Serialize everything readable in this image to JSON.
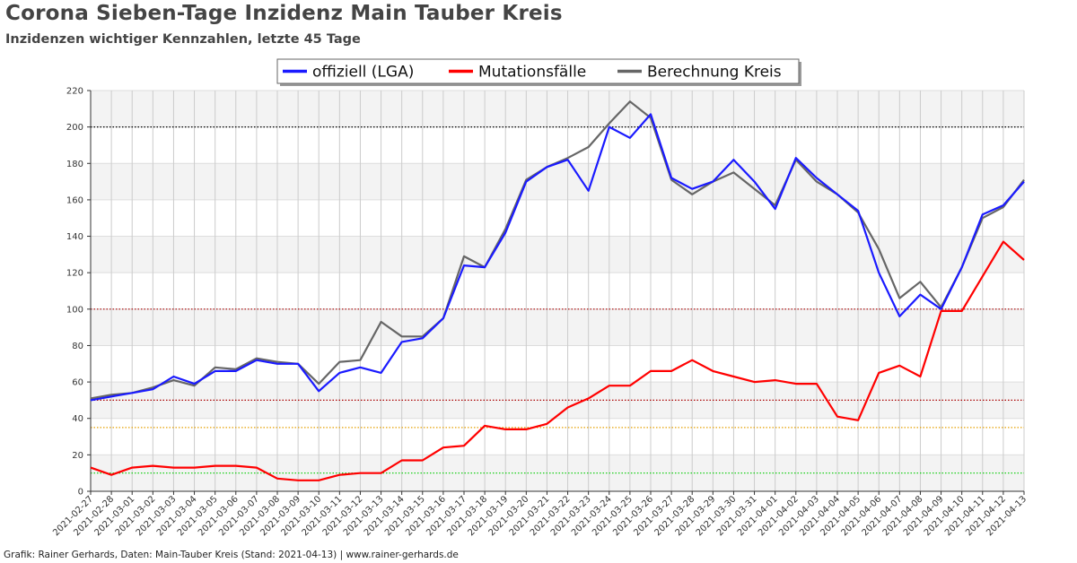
{
  "title": "Corona Sieben-Tage Inzidenz Main Tauber Kreis",
  "subtitle": "Inzidenzen wichtiger Kennzahlen, letzte 45 Tage",
  "footer": "Grafik: Rainer Gerhards, Daten: Main-Tauber Kreis (Stand: 2021-04-13) | www.rainer-gerhards.de",
  "chart_data": {
    "type": "line",
    "x": [
      "2021-02-27",
      "2021-02-28",
      "2021-03-01",
      "2021-03-02",
      "2021-03-03",
      "2021-03-04",
      "2021-03-05",
      "2021-03-06",
      "2021-03-07",
      "2021-03-08",
      "2021-03-09",
      "2021-03-10",
      "2021-03-11",
      "2021-03-12",
      "2021-03-13",
      "2021-03-14",
      "2021-03-15",
      "2021-03-16",
      "2021-03-17",
      "2021-03-18",
      "2021-03-19",
      "2021-03-20",
      "2021-03-21",
      "2021-03-22",
      "2021-03-23",
      "2021-03-24",
      "2021-03-25",
      "2021-03-26",
      "2021-03-27",
      "2021-03-28",
      "2021-03-29",
      "2021-03-30",
      "2021-03-31",
      "2021-04-01",
      "2021-04-02",
      "2021-04-03",
      "2021-04-04",
      "2021-04-05",
      "2021-04-06",
      "2021-04-07",
      "2021-04-08",
      "2021-04-09",
      "2021-04-10",
      "2021-04-11",
      "2021-04-12",
      "2021-04-13"
    ],
    "series": [
      {
        "name": "offiziell (LGA)",
        "color": "#1a1aff",
        "values": [
          50,
          52,
          54,
          56,
          63,
          59,
          66,
          66,
          72,
          70,
          70,
          55,
          65,
          68,
          65,
          82,
          84,
          95,
          124,
          123,
          142,
          170,
          178,
          182,
          165,
          200,
          194,
          207,
          172,
          166,
          170,
          182,
          170,
          155,
          183,
          172,
          163,
          154,
          120,
          96,
          108,
          100,
          123,
          152,
          157,
          170
        ]
      },
      {
        "name": "Mutationsfälle",
        "color": "#ff0000",
        "values": [
          13,
          9,
          13,
          14,
          13,
          13,
          14,
          14,
          13,
          7,
          6,
          6,
          9,
          10,
          10,
          17,
          17,
          24,
          25,
          36,
          34,
          34,
          37,
          46,
          51,
          58,
          58,
          66,
          66,
          72,
          66,
          63,
          60,
          61,
          59,
          59,
          41,
          39,
          65,
          69,
          63,
          99,
          99,
          118,
          137,
          127
        ]
      },
      {
        "name": "Berechnung Kreis",
        "color": "#666666",
        "values": [
          51,
          53,
          54,
          57,
          61,
          58,
          68,
          67,
          73,
          71,
          70,
          59,
          71,
          72,
          93,
          85,
          85,
          95,
          129,
          123,
          144,
          171,
          178,
          183,
          189,
          202,
          214,
          205,
          171,
          163,
          170,
          175,
          166,
          157,
          182,
          170,
          163,
          153,
          133,
          106,
          115,
          101,
          123,
          150,
          156,
          171
        ]
      }
    ],
    "ylim": [
      0,
      220
    ],
    "yticks": [
      0,
      20,
      40,
      60,
      80,
      100,
      120,
      140,
      160,
      180,
      200,
      220
    ],
    "reference_lines": [
      {
        "value": 200,
        "color": "#000000"
      },
      {
        "value": 100,
        "color": "#aa0000"
      },
      {
        "value": 50,
        "color": "#aa0000"
      },
      {
        "value": 35,
        "color": "#e6a000"
      },
      {
        "value": 10,
        "color": "#00cc00"
      }
    ],
    "grid": true,
    "legend": "top-center"
  }
}
